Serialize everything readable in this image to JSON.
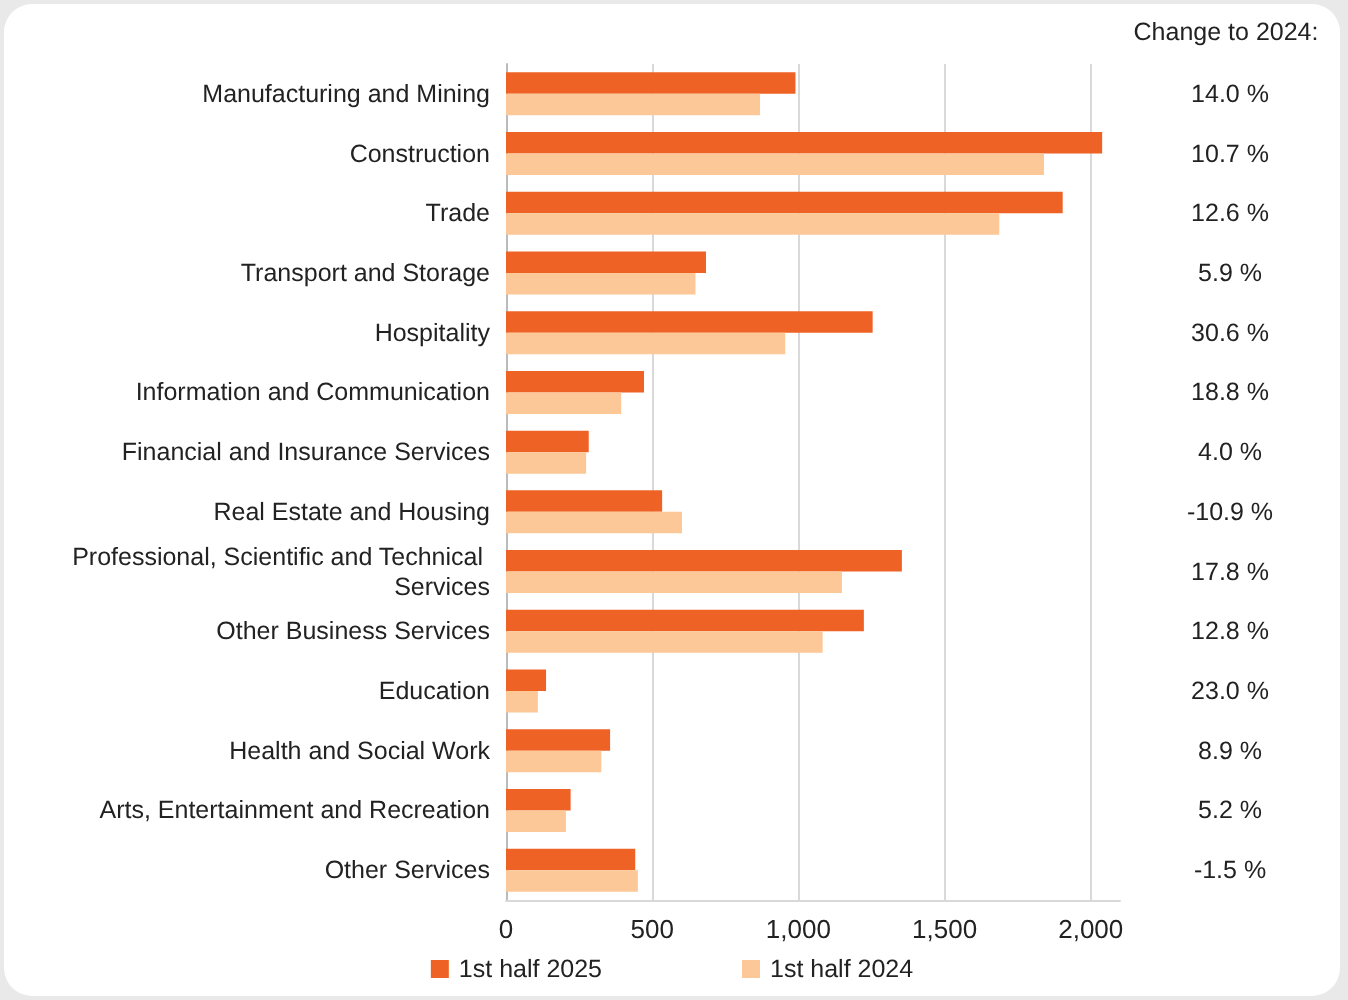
{
  "chart_data": {
    "type": "bar",
    "orientation": "horizontal",
    "categories": [
      "Manufacturing and Mining",
      "Construction",
      "Trade",
      "Transport and Storage",
      "Hospitality",
      "Information and Communication",
      "Financial and Insurance Services",
      "Real Estate and Housing",
      "Professional, Scientific and Technical Services",
      "Other Business Services",
      "Education",
      "Health and Social Work",
      "Arts, Entertainment and Recreation",
      "Other Services"
    ],
    "series": [
      {
        "name": "1st half 2025",
        "color": "#ee6325",
        "values": [
          990,
          2039,
          1904,
          684,
          1254,
          472,
          283,
          534,
          1354,
          1224,
          137,
          356,
          221,
          442
        ]
      },
      {
        "name": "1st half 2024",
        "color": "#fdc897",
        "values": [
          869,
          1840,
          1687,
          648,
          955,
          394,
          274,
          602,
          1149,
          1083,
          109,
          326,
          205,
          451
        ]
      }
    ],
    "xlim": [
      0,
      2100
    ],
    "xticks": [
      {
        "value": 0,
        "label": "0"
      },
      {
        "value": 500,
        "label": "500"
      },
      {
        "value": 1000,
        "label": "1,000"
      },
      {
        "value": 1500,
        "label": "1,500"
      },
      {
        "value": 2000,
        "label": "2,000"
      }
    ],
    "grid": "x",
    "legend": "bottom",
    "annotations": [
      "Change to 2024:",
      "14.0 %",
      "10.7 %",
      "12.6 %",
      "5.9 %",
      "30.6 %",
      "18.8 %",
      "4.0 %",
      "-10.9 %",
      "17.8 %",
      "12.8 %",
      "23.0 %",
      "8.9 %",
      "5.2 %",
      "-1.5 %"
    ]
  }
}
